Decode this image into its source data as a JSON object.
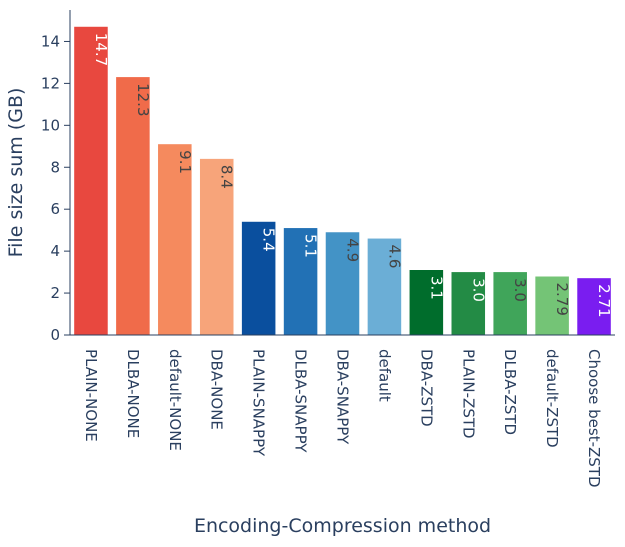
{
  "chart_data": {
    "type": "bar",
    "title": "",
    "xlabel": "Encoding-Compression method",
    "ylabel": "File size sum (GB)",
    "ylim": [
      0,
      15.5
    ],
    "yticks": [
      0,
      2,
      4,
      6,
      8,
      10,
      12,
      14
    ],
    "grid": false,
    "categories": [
      "PLAIN-NONE",
      "DLBA-NONE",
      "default-NONE",
      "DBA-NONE",
      "PLAIN-SNAPPY",
      "DLBA-SNAPPY",
      "DBA-SNAPPY",
      "default",
      "DBA-ZSTD",
      "PLAIN-ZSTD",
      "DLBA-ZSTD",
      "default-ZSTD",
      "Choose best-ZSTD"
    ],
    "values": [
      14.7,
      12.3,
      9.1,
      8.4,
      5.4,
      5.1,
      4.9,
      4.6,
      3.1,
      3.0,
      3.0,
      2.79,
      2.71
    ],
    "value_labels": [
      "14.7",
      "12.3",
      "9.1",
      "8.4",
      "5.4",
      "5.1",
      "4.9",
      "4.6",
      "3.1",
      "3.0",
      "3.0",
      "2.79",
      "2.71"
    ],
    "colors": [
      "#e8483f",
      "#f06b4a",
      "#f58a5e",
      "#f7a47a",
      "#0a4f9e",
      "#2271b5",
      "#4393c6",
      "#6baed6",
      "#006d2c",
      "#238b45",
      "#40a55a",
      "#74c476",
      "#7a1df0"
    ],
    "label_colors": [
      "#ffffff",
      "#444444",
      "#444444",
      "#444444",
      "#ffffff",
      "#ffffff",
      "#444444",
      "#444444",
      "#ffffff",
      "#ffffff",
      "#444444",
      "#444444",
      "#ffffff"
    ]
  }
}
